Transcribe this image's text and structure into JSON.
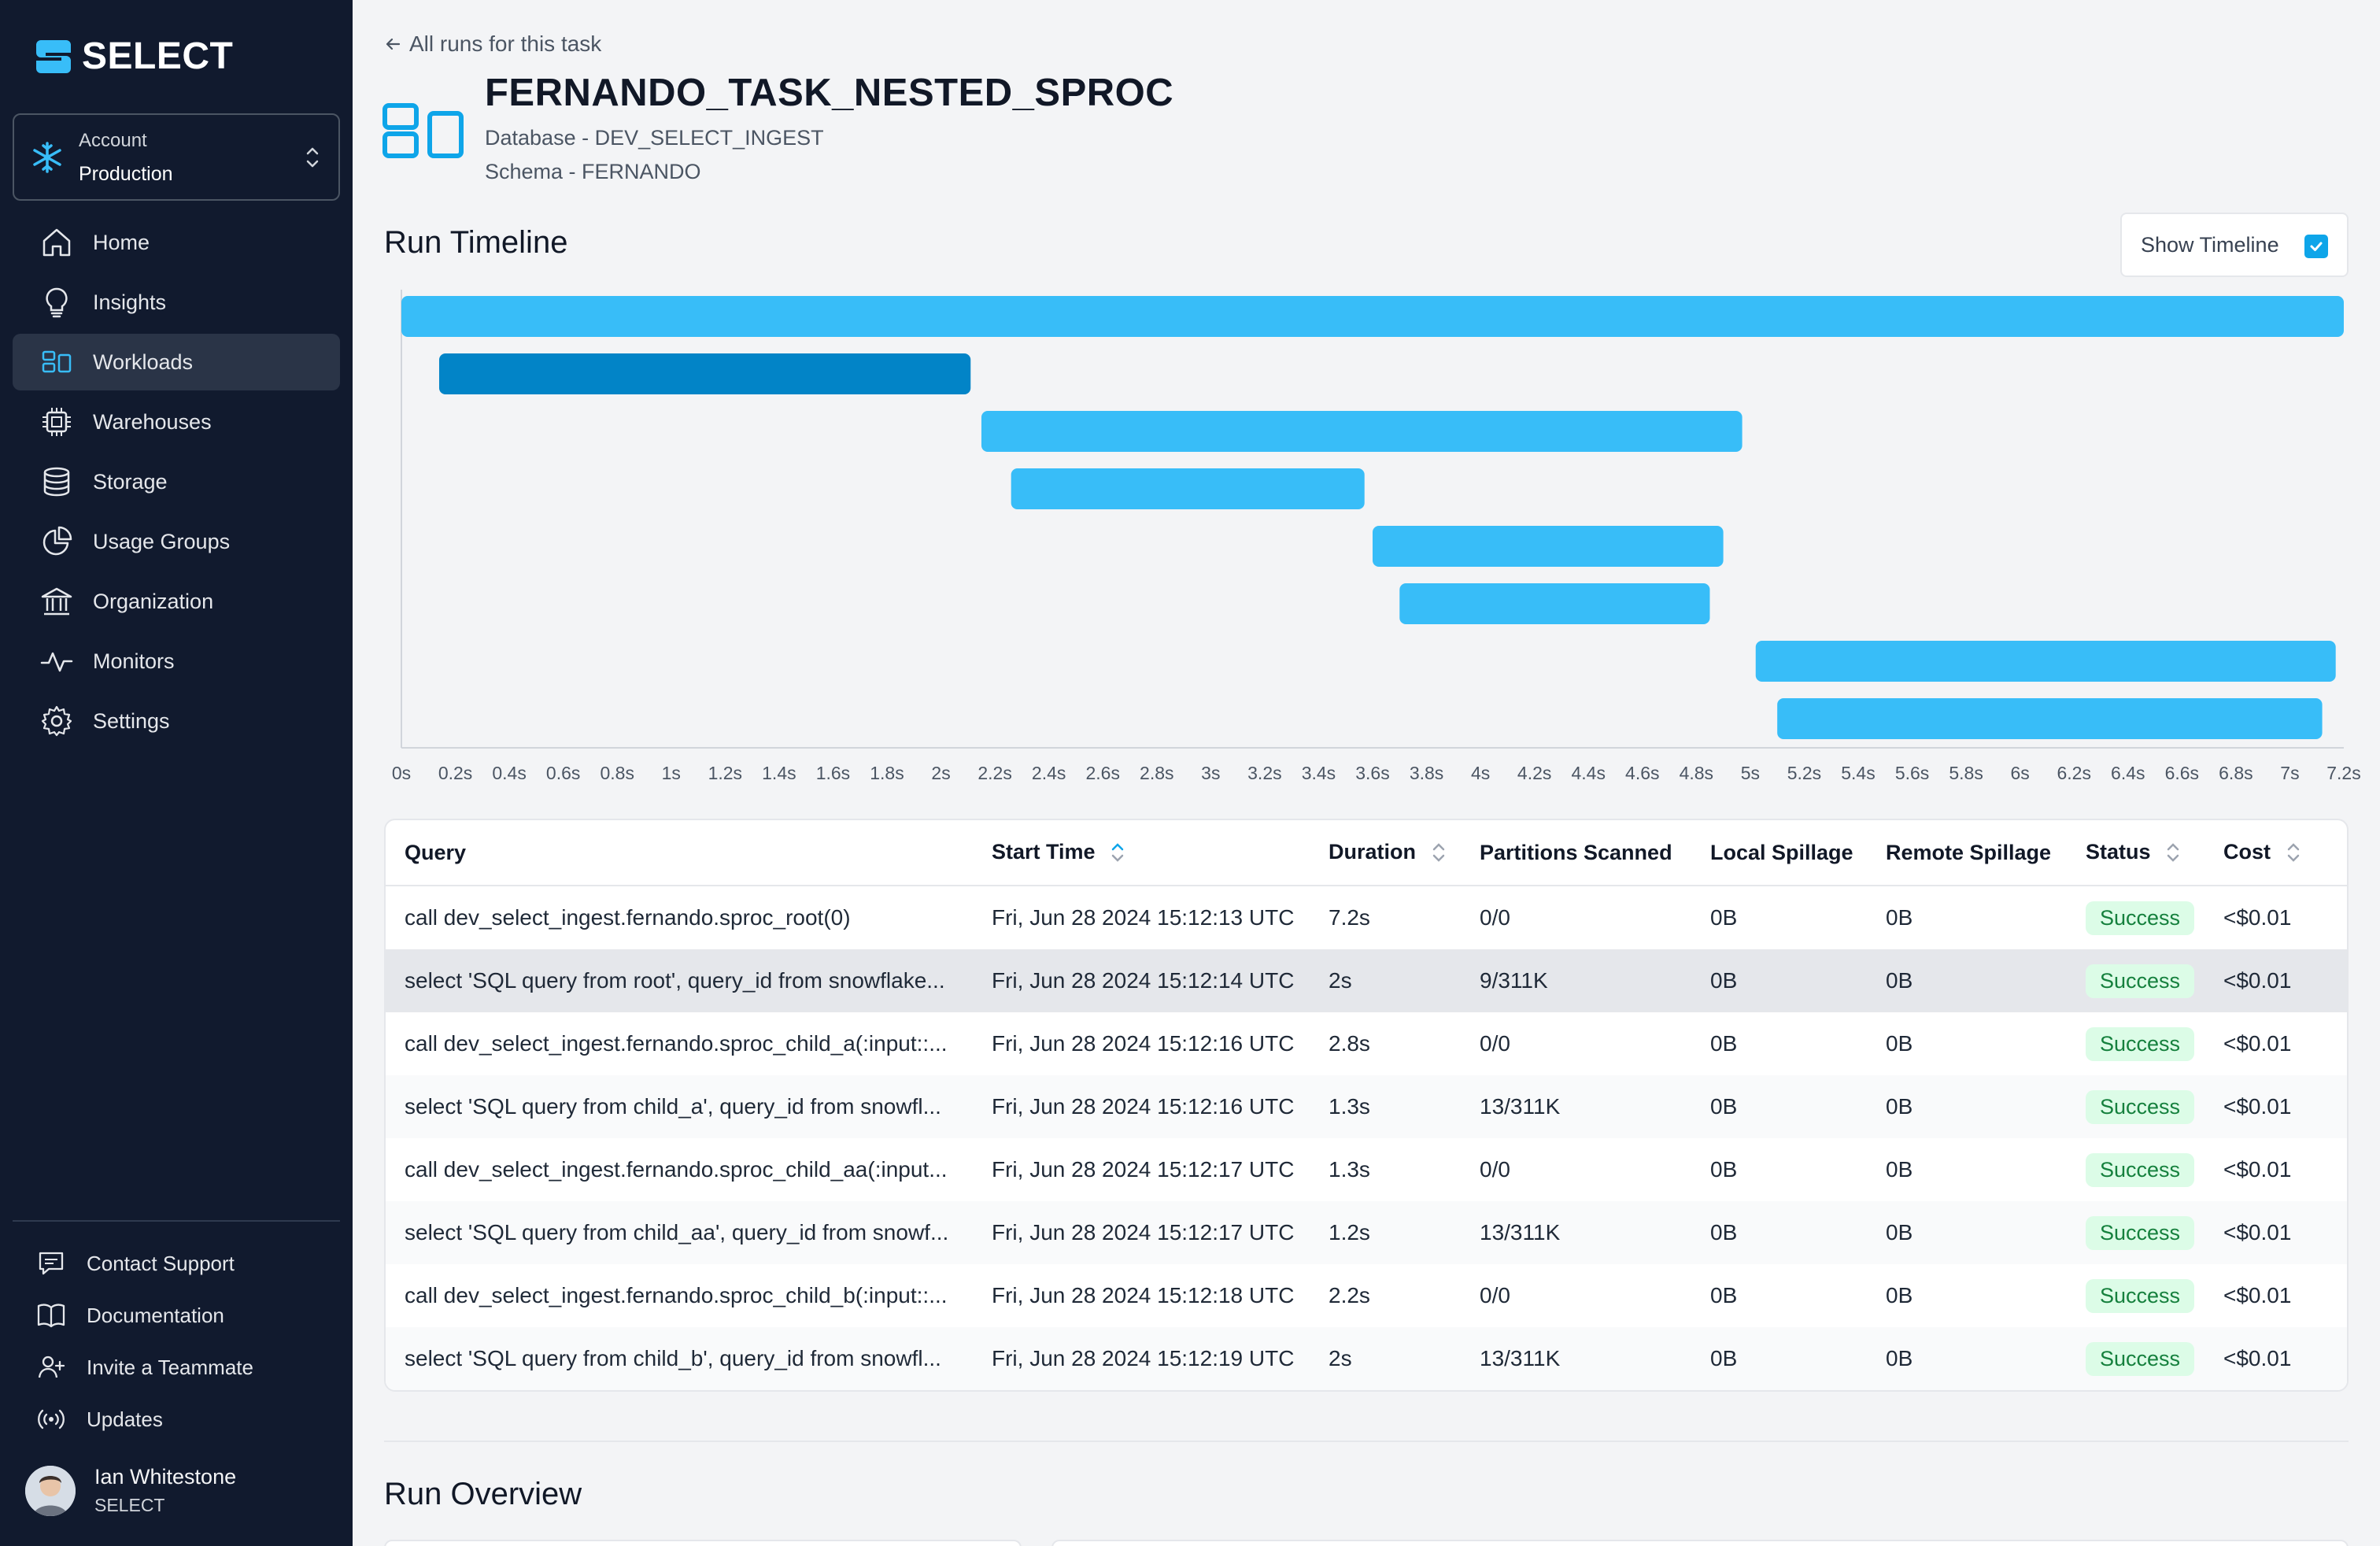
{
  "brand": {
    "name": "SELECT"
  },
  "account": {
    "label": "Account",
    "value": "Production"
  },
  "nav": [
    {
      "label": "Home",
      "icon": "home-icon"
    },
    {
      "label": "Insights",
      "icon": "lightbulb-icon"
    },
    {
      "label": "Workloads",
      "icon": "workloads-icon",
      "active": true
    },
    {
      "label": "Warehouses",
      "icon": "chip-icon"
    },
    {
      "label": "Storage",
      "icon": "database-icon"
    },
    {
      "label": "Usage Groups",
      "icon": "pie-chart-icon"
    },
    {
      "label": "Organization",
      "icon": "building-icon"
    },
    {
      "label": "Monitors",
      "icon": "pulse-icon"
    },
    {
      "label": "Settings",
      "icon": "gear-icon"
    }
  ],
  "bottom_nav": [
    {
      "label": "Contact Support",
      "icon": "chat-icon"
    },
    {
      "label": "Documentation",
      "icon": "book-icon"
    },
    {
      "label": "Invite a Teammate",
      "icon": "user-plus-icon"
    },
    {
      "label": "Updates",
      "icon": "broadcast-icon"
    }
  ],
  "user": {
    "name": "Ian Whitestone",
    "org": "SELECT"
  },
  "header": {
    "back_link": "All runs for this task",
    "title": "FERNANDO_TASK_NESTED_SPROC",
    "database": "Database - DEV_SELECT_INGEST",
    "schema": "Schema - FERNANDO"
  },
  "timeline": {
    "title": "Run Timeline",
    "toggle_label": "Show Timeline",
    "toggle_checked": true,
    "colors": {
      "bar": "#38bdf8",
      "bar_selected": "#0284c7"
    }
  },
  "chart_data": {
    "type": "bar",
    "orientation": "horizontal-gantt",
    "x_ticks": [
      "0s",
      "0.2s",
      "0.4s",
      "0.6s",
      "0.8s",
      "1s",
      "1.2s",
      "1.4s",
      "1.6s",
      "1.8s",
      "2s",
      "2.2s",
      "2.4s",
      "2.6s",
      "2.8s",
      "3s",
      "3.2s",
      "3.4s",
      "3.6s",
      "3.8s",
      "4s",
      "4.2s",
      "4.4s",
      "4.6s",
      "4.8s",
      "5s",
      "5.2s",
      "5.4s",
      "5.6s",
      "5.8s",
      "6s",
      "6.2s",
      "6.4s",
      "6.6s",
      "6.8s",
      "7s",
      "7.2s"
    ],
    "xlim": [
      0,
      7.2
    ],
    "bars": [
      {
        "start": 0.0,
        "end": 7.2,
        "selected": false
      },
      {
        "start": 0.14,
        "end": 2.11,
        "selected": true
      },
      {
        "start": 2.15,
        "end": 4.97,
        "selected": false
      },
      {
        "start": 2.26,
        "end": 3.57,
        "selected": false
      },
      {
        "start": 3.6,
        "end": 4.9,
        "selected": false
      },
      {
        "start": 3.7,
        "end": 4.85,
        "selected": false
      },
      {
        "start": 5.02,
        "end": 7.17,
        "selected": false
      },
      {
        "start": 5.1,
        "end": 7.12,
        "selected": false
      }
    ]
  },
  "table": {
    "columns": [
      "Query",
      "Start Time",
      "Duration",
      "Partitions Scanned",
      "Local Spillage",
      "Remote Spillage",
      "Status",
      "Cost"
    ],
    "rows": [
      {
        "query": "call dev_select_ingest.fernando.sproc_root(0)",
        "start": "Fri, Jun 28 2024 15:12:13 UTC",
        "duration": "7.2s",
        "partitions": "0/0",
        "local": "0B",
        "remote": "0B",
        "status": "Success",
        "cost": "<$0.01"
      },
      {
        "query": "select 'SQL query from root', query_id from snowflake...",
        "start": "Fri, Jun 28 2024 15:12:14 UTC",
        "duration": "2s",
        "partitions": "9/311K",
        "local": "0B",
        "remote": "0B",
        "status": "Success",
        "cost": "<$0.01"
      },
      {
        "query": "call dev_select_ingest.fernando.sproc_child_a(:input::...",
        "start": "Fri, Jun 28 2024 15:12:16 UTC",
        "duration": "2.8s",
        "partitions": "0/0",
        "local": "0B",
        "remote": "0B",
        "status": "Success",
        "cost": "<$0.01"
      },
      {
        "query": "select 'SQL query from child_a', query_id from snowfl...",
        "start": "Fri, Jun 28 2024 15:12:16 UTC",
        "duration": "1.3s",
        "partitions": "13/311K",
        "local": "0B",
        "remote": "0B",
        "status": "Success",
        "cost": "<$0.01"
      },
      {
        "query": "call dev_select_ingest.fernando.sproc_child_aa(:input...",
        "start": "Fri, Jun 28 2024 15:12:17 UTC",
        "duration": "1.3s",
        "partitions": "0/0",
        "local": "0B",
        "remote": "0B",
        "status": "Success",
        "cost": "<$0.01"
      },
      {
        "query": "select 'SQL query from child_aa', query_id from snowf...",
        "start": "Fri, Jun 28 2024 15:12:17 UTC",
        "duration": "1.2s",
        "partitions": "13/311K",
        "local": "0B",
        "remote": "0B",
        "status": "Success",
        "cost": "<$0.01"
      },
      {
        "query": "call dev_select_ingest.fernando.sproc_child_b(:input::...",
        "start": "Fri, Jun 28 2024 15:12:18 UTC",
        "duration": "2.2s",
        "partitions": "0/0",
        "local": "0B",
        "remote": "0B",
        "status": "Success",
        "cost": "<$0.01"
      },
      {
        "query": "select 'SQL query from child_b', query_id from snowfl...",
        "start": "Fri, Jun 28 2024 15:12:19 UTC",
        "duration": "2s",
        "partitions": "13/311K",
        "local": "0B",
        "remote": "0B",
        "status": "Success",
        "cost": "<$0.01"
      }
    ]
  },
  "overview": {
    "title": "Run Overview"
  }
}
